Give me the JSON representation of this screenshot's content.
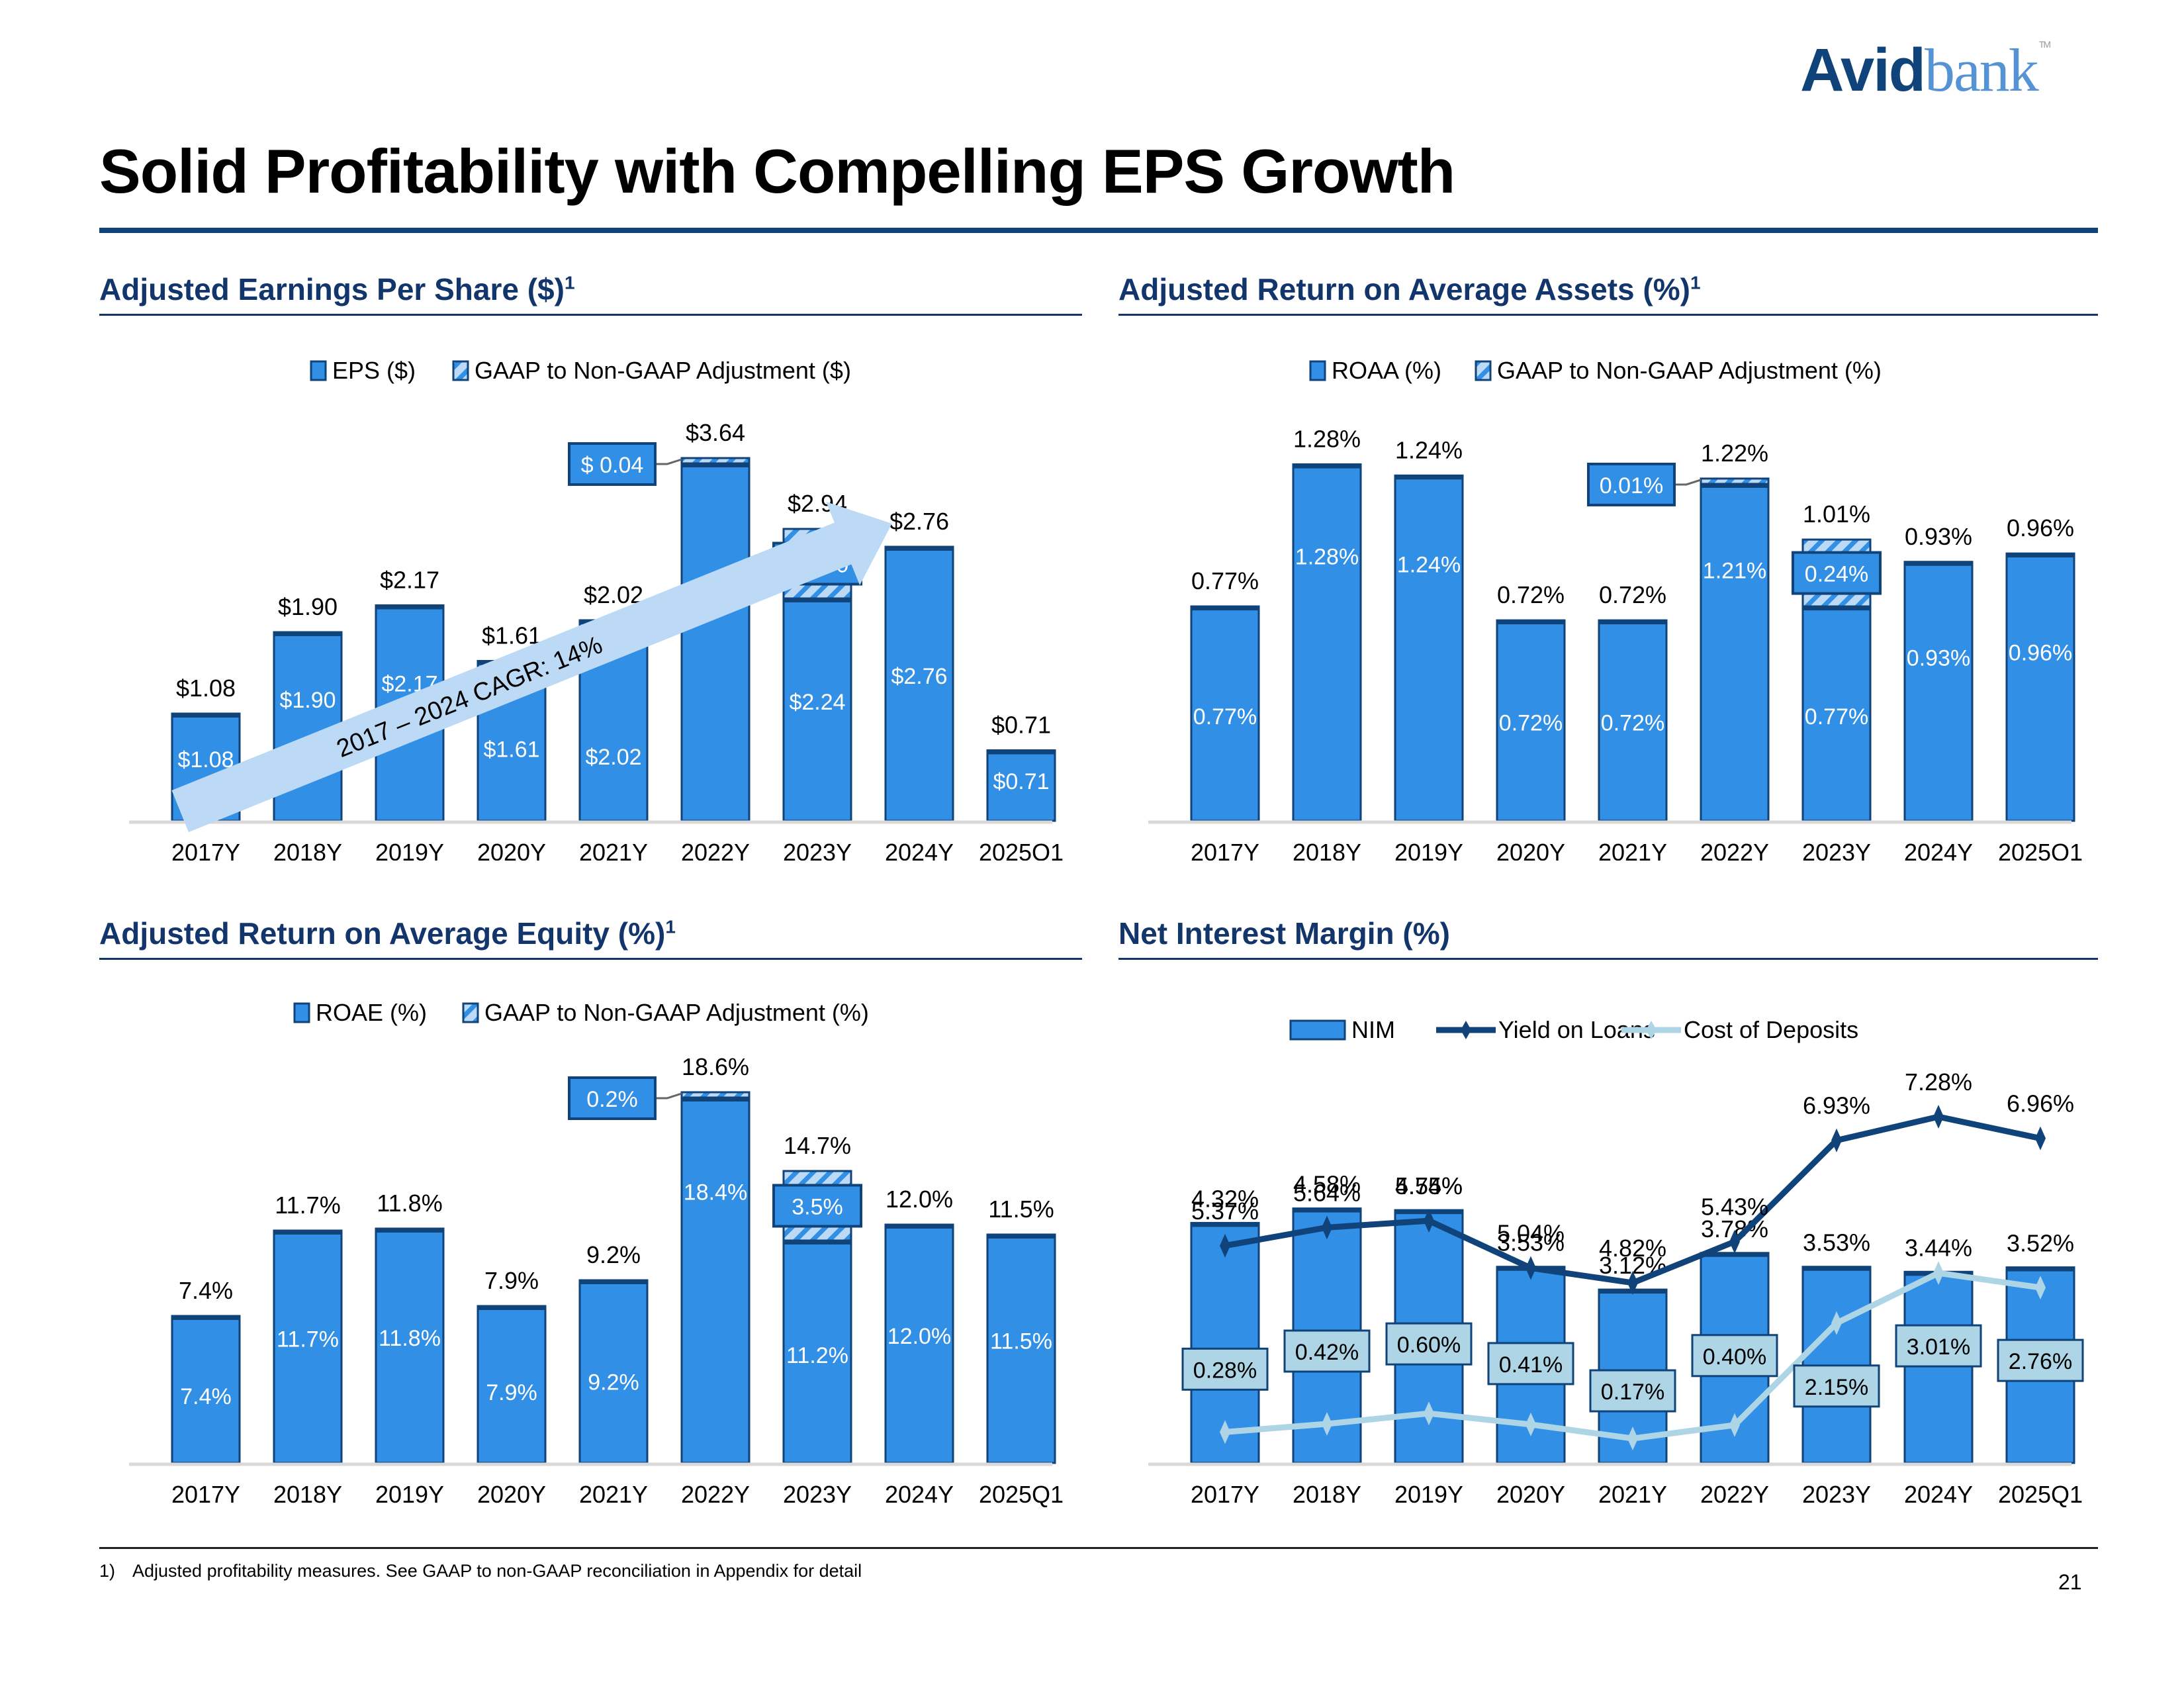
{
  "logo": {
    "part1": "Avid",
    "part2": "bank",
    "tm": "TM"
  },
  "page_title": "Solid Profitability with Compelling EPS Growth",
  "footnote": {
    "number": "1)",
    "text": "Adjusted profitability measures. See GAAP to non-GAAP reconciliation in Appendix for detail"
  },
  "page_number": "21",
  "colors": {
    "bar": "#318fe6",
    "bar_border": "#0f437a",
    "hatch_light": "#bcdaf6",
    "navy": "#12356b",
    "line_dark": "#0f437a",
    "line_light": "#add5e6",
    "arrow": "#bcdaf6"
  },
  "chart_data": [
    {
      "id": "eps",
      "type": "bar",
      "title": "Adjusted Earnings Per Share ($)",
      "title_footnote": "1",
      "legend": [
        "EPS ($)",
        "GAAP to Non-GAAP Adjustment ($)"
      ],
      "legend_placement": "top",
      "categories": [
        "2017Y",
        "2018Y",
        "2019Y",
        "2020Y",
        "2021Y",
        "2022Y",
        "2023Y",
        "2024Y",
        "2025Q1"
      ],
      "series": [
        {
          "name": "EPS ($)",
          "values": [
            1.08,
            1.9,
            2.17,
            1.61,
            2.02,
            3.6,
            2.24,
            2.76,
            0.71
          ],
          "labels": [
            "$1.08",
            "$1.90",
            "$2.17",
            "$1.61",
            "$2.02",
            "$3.60",
            "$2.24",
            "$2.76",
            "$0.71"
          ]
        },
        {
          "name": "GAAP to Non-GAAP Adjustment ($)",
          "values": [
            0,
            0,
            0,
            0,
            0,
            0.04,
            0.7,
            0,
            0
          ],
          "labels": [
            "",
            "",
            "",
            "",
            "",
            "$ 0.04",
            "$ 0.70",
            "",
            ""
          ]
        }
      ],
      "totals": [
        1.08,
        1.9,
        2.17,
        1.61,
        2.02,
        3.64,
        2.94,
        2.76,
        0.71
      ],
      "total_labels": [
        "$1.08",
        "$1.90",
        "$2.17",
        "$1.61",
        "$2.02",
        "$3.64",
        "$2.94",
        "$2.76",
        "$0.71"
      ],
      "annotation": "2017 – 2024 CAGR: 14%",
      "ylim": [
        0,
        4.2
      ],
      "grid": false
    },
    {
      "id": "roaa",
      "type": "bar",
      "title": "Adjusted Return on Average Assets (%)",
      "title_footnote": "1",
      "legend": [
        "ROAA (%)",
        "GAAP to Non-GAAP Adjustment (%)"
      ],
      "legend_placement": "top",
      "categories": [
        "2017Y",
        "2018Y",
        "2019Y",
        "2020Y",
        "2021Y",
        "2022Y",
        "2023Y",
        "2024Y",
        "2025Q1"
      ],
      "series": [
        {
          "name": "ROAA (%)",
          "values": [
            0.77,
            1.28,
            1.24,
            0.72,
            0.72,
            1.21,
            0.77,
            0.93,
            0.96
          ],
          "labels": [
            "0.77%",
            "1.28%",
            "1.24%",
            "0.72%",
            "0.72%",
            "1.21%",
            "0.77%",
            "0.93%",
            "0.96%"
          ]
        },
        {
          "name": "GAAP to Non-GAAP Adjustment (%)",
          "values": [
            0,
            0,
            0,
            0,
            0,
            0.01,
            0.24,
            0,
            0
          ],
          "labels": [
            "",
            "",
            "",
            "",
            "",
            "0.01%",
            "0.24%",
            "",
            ""
          ]
        }
      ],
      "totals": [
        0.77,
        1.28,
        1.24,
        0.72,
        0.72,
        1.22,
        1.01,
        0.93,
        0.96
      ],
      "total_labels": [
        "0.77%",
        "1.28%",
        "1.24%",
        "0.72%",
        "0.72%",
        "1.22%",
        "1.01%",
        "0.93%",
        "0.96%"
      ],
      "ylim": [
        0,
        1.45
      ],
      "grid": false
    },
    {
      "id": "roae",
      "type": "bar",
      "title": "Adjusted Return on Average Equity (%)",
      "title_footnote": "1",
      "legend": [
        "ROAE (%)",
        "GAAP to Non-GAAP Adjustment (%)"
      ],
      "legend_placement": "top",
      "categories": [
        "2017Y",
        "2018Y",
        "2019Y",
        "2020Y",
        "2021Y",
        "2022Y",
        "2023Y",
        "2024Y",
        "2025Q1"
      ],
      "series": [
        {
          "name": "ROAE (%)",
          "values": [
            7.4,
            11.7,
            11.8,
            7.9,
            9.2,
            18.4,
            11.2,
            12.0,
            11.5
          ],
          "labels": [
            "7.4%",
            "11.7%",
            "11.8%",
            "7.9%",
            "9.2%",
            "18.4%",
            "11.2%",
            "12.0%",
            "11.5%"
          ]
        },
        {
          "name": "GAAP to Non-GAAP Adjustment (%)",
          "values": [
            0,
            0,
            0,
            0,
            0,
            0.2,
            3.5,
            0,
            0
          ],
          "labels": [
            "",
            "",
            "",
            "",
            "",
            "0.2%",
            "3.5%",
            "",
            ""
          ]
        }
      ],
      "totals": [
        7.4,
        11.7,
        11.8,
        7.9,
        9.2,
        18.6,
        14.7,
        12.0,
        11.5
      ],
      "total_labels": [
        "7.4%",
        "11.7%",
        "11.8%",
        "7.9%",
        "9.2%",
        "18.6%",
        "14.7%",
        "12.0%",
        "11.5%"
      ],
      "ylim": [
        0,
        21
      ],
      "grid": false
    },
    {
      "id": "nim",
      "type": "bar",
      "title": "Net Interest Margin (%)",
      "legend": [
        "NIM",
        "Yield on Loans",
        "Cost of Deposits"
      ],
      "legend_placement": "top",
      "categories": [
        "2017Y",
        "2018Y",
        "2019Y",
        "2020Y",
        "2021Y",
        "2022Y",
        "2023Y",
        "2024Y",
        "2025Q1"
      ],
      "series": [
        {
          "name": "NIM",
          "kind": "bar",
          "values": [
            4.32,
            4.58,
            4.55,
            3.53,
            3.12,
            3.78,
            3.53,
            3.44,
            3.52
          ],
          "labels": [
            "4.32%",
            "4.58%",
            "4.55%",
            "3.53%",
            "3.12%",
            "3.78%",
            "3.53%",
            "3.44%",
            "3.52%"
          ]
        },
        {
          "name": "Yield on Loans",
          "kind": "line",
          "values": [
            5.37,
            5.64,
            5.74,
            5.04,
            4.82,
            5.43,
            6.93,
            7.28,
            6.96
          ],
          "labels": [
            "5.37%",
            "5.64%",
            "5.74%",
            "5.04%",
            "4.82%",
            "5.43%",
            "6.93%",
            "7.28%",
            "6.96%"
          ]
        },
        {
          "name": "Cost of Deposits",
          "kind": "line",
          "values": [
            0.28,
            0.42,
            0.6,
            0.41,
            0.17,
            0.4,
            2.15,
            3.01,
            2.76
          ],
          "labels": [
            "0.28%",
            "0.42%",
            "0.60%",
            "0.41%",
            "0.17%",
            "0.40%",
            "2.15%",
            "3.01%",
            "2.76%"
          ]
        }
      ],
      "ylim": [
        0,
        8.0
      ],
      "grid": false
    }
  ]
}
